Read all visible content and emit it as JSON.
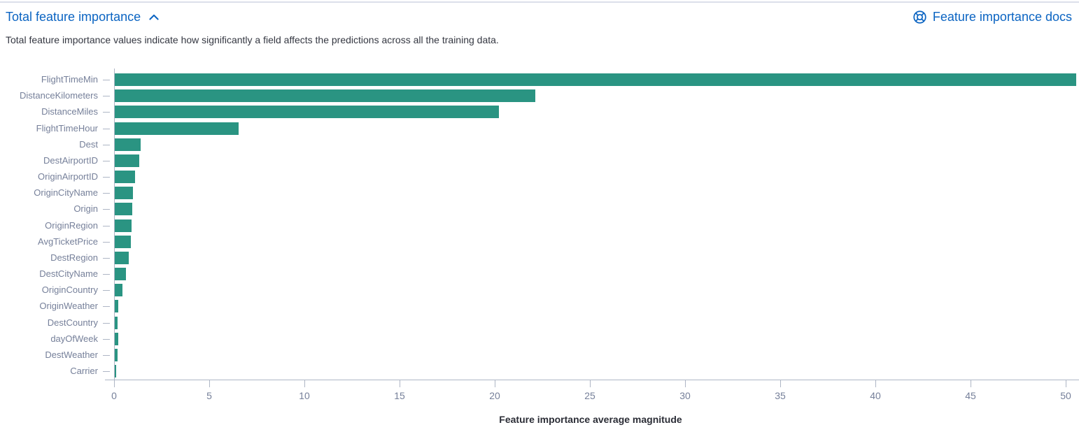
{
  "header": {
    "title": "Total feature importance",
    "docs_link_label": "Feature importance docs"
  },
  "description": "Total feature importance values indicate how significantly a field affects the predictions across all the training data.",
  "colors": {
    "link": "#0b64c2",
    "bar": "#2a9482",
    "axis_line": "#aeb6c5",
    "axis_label": "#76809a",
    "body_text": "#343741",
    "divider": "#dcdfea"
  },
  "chart_data": {
    "type": "bar",
    "orientation": "horizontal",
    "title": "",
    "xlabel": "Feature importance average magnitude",
    "ylabel": "",
    "categories": [
      "FlightTimeMin",
      "DistanceKilometers",
      "DistanceMiles",
      "FlightTimeHour",
      "Dest",
      "DestAirportID",
      "OriginAirportID",
      "OriginCityName",
      "Origin",
      "OriginRegion",
      "AvgTicketPrice",
      "DestRegion",
      "DestCityName",
      "OriginCountry",
      "OriginWeather",
      "DestCountry",
      "dayOfWeek",
      "DestWeather",
      "Carrier"
    ],
    "values": [
      50.5,
      22.1,
      20.2,
      6.5,
      1.35,
      1.3,
      1.05,
      0.97,
      0.93,
      0.87,
      0.85,
      0.72,
      0.6,
      0.4,
      0.19,
      0.16,
      0.17,
      0.14,
      0.08
    ],
    "x_ticks": [
      0,
      5,
      10,
      15,
      20,
      25,
      30,
      35,
      40,
      45,
      50
    ],
    "xlim": [
      0,
      50.6
    ],
    "grid": false,
    "legend": "none",
    "bar_color": "#2a9482"
  }
}
